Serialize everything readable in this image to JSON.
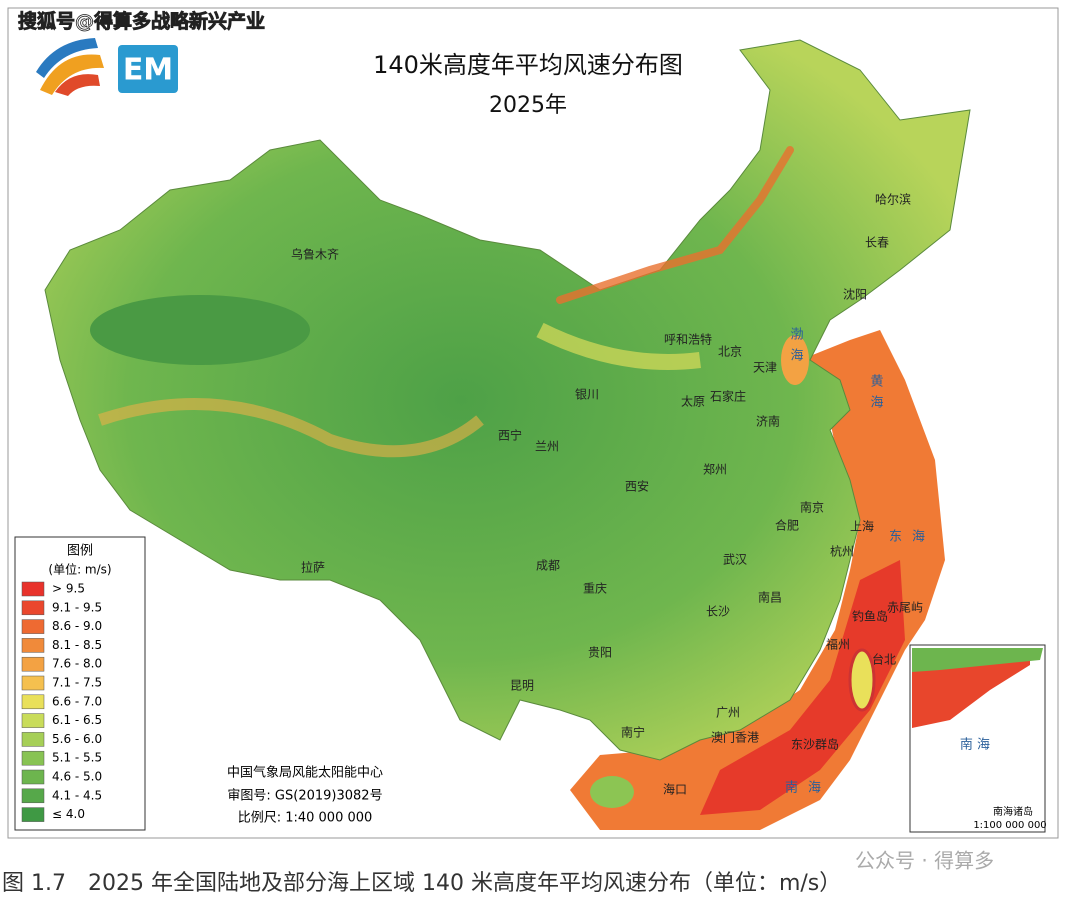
{
  "watermark": "搜狐号@得算多战略新兴产业",
  "logo_text": "EM",
  "title": "140米高度年平均风速分布图",
  "subtitle": "2025年",
  "cities": [
    "乌鲁木齐",
    "哈尔滨",
    "长春",
    "沈阳",
    "呼和浩特",
    "北京",
    "天津",
    "银川",
    "太原",
    "石家庄",
    "济南",
    "西宁",
    "兰州",
    "郑州",
    "西安",
    "南京",
    "合肥",
    "上海",
    "杭州",
    "拉萨",
    "成都",
    "武汉",
    "重庆",
    "南昌",
    "长沙",
    "福州",
    "台北",
    "贵阳",
    "昆明",
    "南宁",
    "广州",
    "澳门香港",
    "海口",
    "钓鱼岛",
    "赤尾屿",
    "东沙群岛"
  ],
  "seas": [
    "渤海",
    "黄海",
    "东海",
    "南海"
  ],
  "legend": {
    "title": "图例",
    "unit": "(单位: m/s)",
    "items": [
      {
        "label": "> 9.5",
        "color": "#e8322b"
      },
      {
        "label": "9.1 - 9.5",
        "color": "#ea472d"
      },
      {
        "label": "8.6 - 9.0",
        "color": "#ee6a32"
      },
      {
        "label": "8.1 - 8.5",
        "color": "#f08a3a"
      },
      {
        "label": "7.6 - 8.0",
        "color": "#f3a243"
      },
      {
        "label": "7.1 - 7.5",
        "color": "#f5c04f"
      },
      {
        "label": "6.6 - 7.0",
        "color": "#e9e05a"
      },
      {
        "label": "6.1 - 6.5",
        "color": "#c9dc5a"
      },
      {
        "label": "5.6 - 6.0",
        "color": "#a6cf57"
      },
      {
        "label": "5.1 - 5.5",
        "color": "#88c353"
      },
      {
        "label": "4.6 - 5.0",
        "color": "#6db54e"
      },
      {
        "label": "4.1 - 4.5",
        "color": "#56a84a"
      },
      {
        "label": "≤ 4.0",
        "color": "#3f9944"
      }
    ]
  },
  "credits": [
    "中国气象局风能太阳能中心",
    "审图号: GS(2019)3082号",
    "比例尺: 1:40 000 000"
  ],
  "inset": {
    "sea": "南 海",
    "label": "南海诸岛",
    "scale": "1:100 000 000"
  },
  "caption": "图 1.7　2025 年全国陆地及部分海上区域 140 米高度年平均风速分布（单位：m/s）",
  "footer_watermark": "公众号 · 得算多"
}
